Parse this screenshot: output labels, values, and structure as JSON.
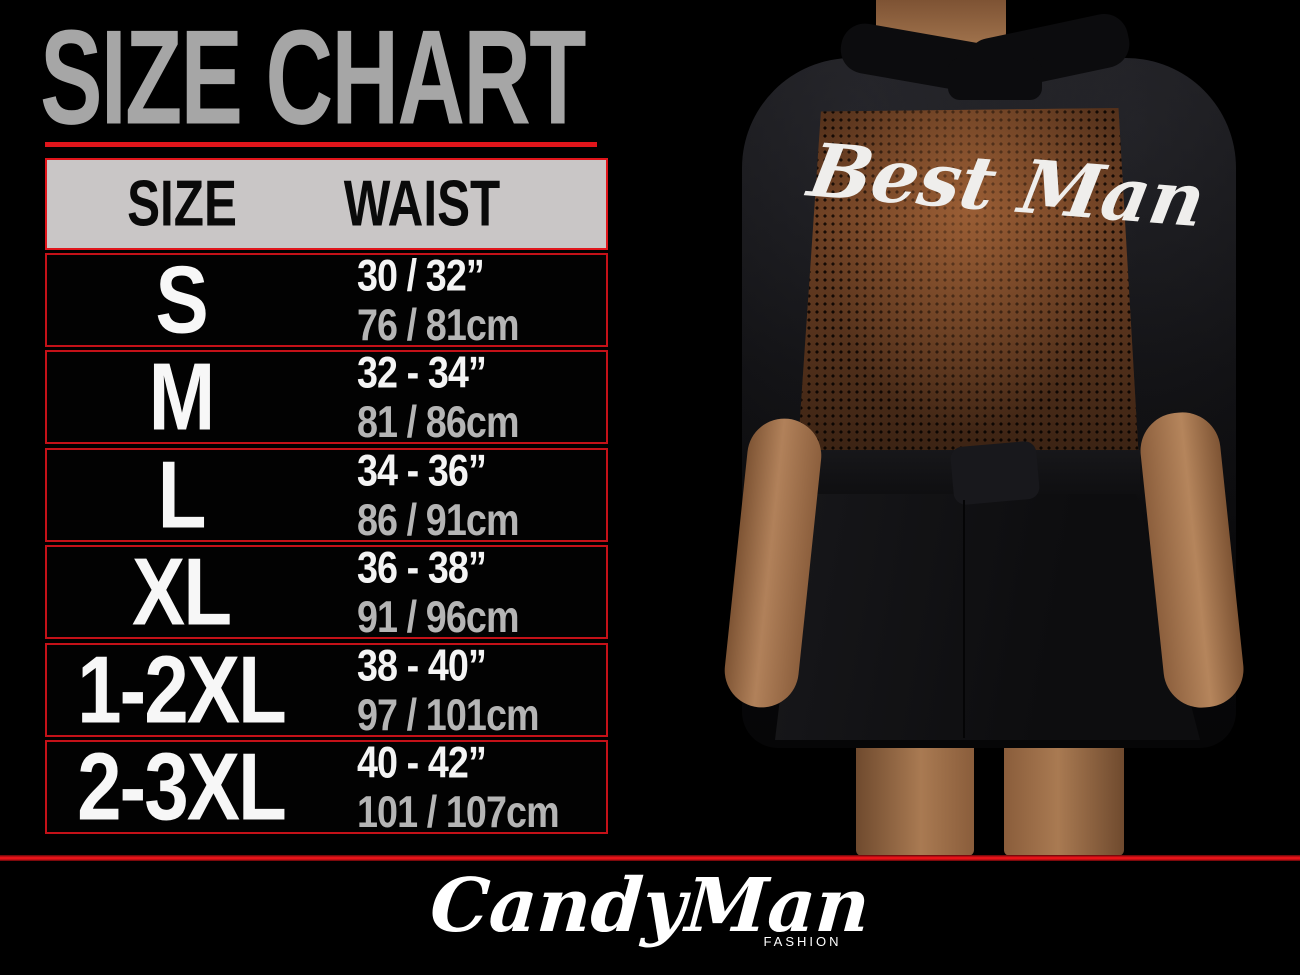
{
  "title": {
    "text": "SIZE CHART"
  },
  "table": {
    "headers": {
      "size": "SIZE",
      "waist": "WAIST"
    },
    "rows": [
      {
        "size": "S",
        "waist_in": "30 / 32”",
        "waist_cm": "76 / 81cm"
      },
      {
        "size": "M",
        "waist_in": "32 - 34”",
        "waist_cm": "81 / 86cm"
      },
      {
        "size": "L",
        "waist_in": "34 - 36”",
        "waist_cm": "86 / 91cm"
      },
      {
        "size": "XL",
        "waist_in": "36 - 38”",
        "waist_cm": "91 / 96cm"
      },
      {
        "size": "1-2XL",
        "waist_in": "38 - 40”",
        "waist_cm": "97 / 101cm"
      },
      {
        "size": "2-3XL",
        "waist_in": "40 - 42”",
        "waist_cm": "101 / 107cm"
      }
    ]
  },
  "product_photo": {
    "back_print": "Best Man"
  },
  "footer": {
    "brand": "CandyMan",
    "sub_brand": "FASHION"
  },
  "colors": {
    "accent_red": "#e0151b",
    "title_gray": "#a6a6a6",
    "header_bg": "#c9c6c6",
    "waist_cm_gray": "#b5b5b5",
    "mesh_brown": "#6f4124",
    "skin_tan": "#a97a52"
  },
  "chart_data": {
    "type": "table",
    "title": "SIZE CHART",
    "columns": [
      "SIZE",
      "WAIST"
    ],
    "rows": [
      [
        "S",
        "30 / 32” | 76 / 81cm"
      ],
      [
        "M",
        "32 - 34” | 81 / 86cm"
      ],
      [
        "L",
        "34 - 36” | 86 / 91cm"
      ],
      [
        "XL",
        "36 - 38” | 91 / 96cm"
      ],
      [
        "1-2XL",
        "38 - 40” | 97 / 101cm"
      ],
      [
        "2-3XL",
        "40 - 42” | 101 / 107cm"
      ]
    ]
  }
}
